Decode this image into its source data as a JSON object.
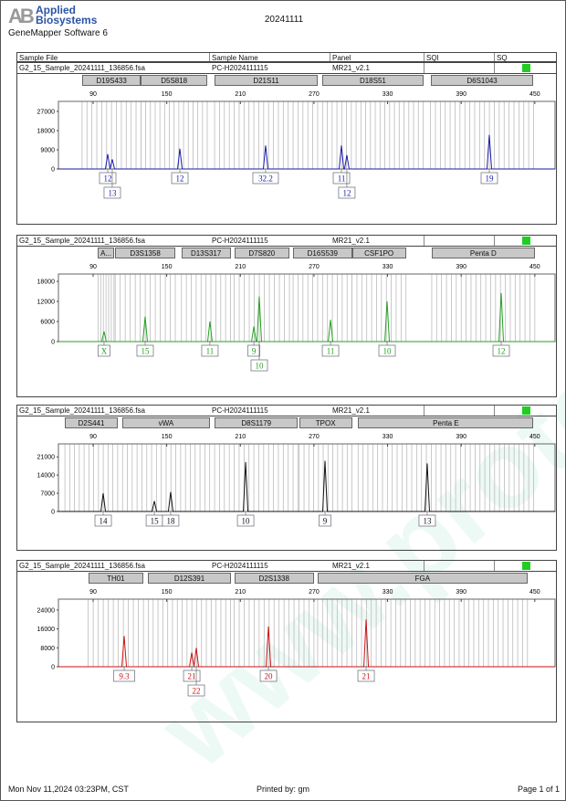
{
  "header": {
    "logo_text_1": "Applied",
    "logo_text_2": "Biosystems",
    "logo_mark": "AB",
    "software": "GeneMapper Software 6",
    "title": "20241111"
  },
  "columns": {
    "sample_file": "Sample File",
    "sample_name": "Sample Name",
    "panel": "Panel",
    "sqi": "SQI",
    "sq": "SQ"
  },
  "watermark": "www.proteh.com.cn",
  "footer": {
    "datetime": "Mon Nov 11,2024 03:23PM, CST",
    "printed_by": "Printed by: gm",
    "page": "Page 1 of 1"
  },
  "colors": {
    "sq_ok": "#22cc22",
    "bin": "#bbbbbb"
  },
  "chart_data": [
    {
      "type": "line",
      "sample_file": "G2_15_Sample_20241111_136856.fsa",
      "sample_name": "PC-H2024111115",
      "panel": "MR21_v2.1",
      "color": "#1a1aa6",
      "xlim": [
        62,
        466
      ],
      "ylim": [
        0,
        31700
      ],
      "x_ticks": [
        90,
        150,
        210,
        270,
        330,
        390,
        450
      ],
      "y_ticks": [
        0,
        9000,
        18000,
        27000
      ],
      "markers": [
        {
          "name": "D19S433",
          "range": [
            81,
            129
          ]
        },
        {
          "name": "D5S818",
          "range": [
            129,
            183
          ]
        },
        {
          "name": "D21S11",
          "range": [
            189,
            273
          ]
        },
        {
          "name": "D18S51",
          "range": [
            277,
            359
          ]
        },
        {
          "name": "D6S1043",
          "range": [
            365,
            449
          ]
        }
      ],
      "peaks": [
        {
          "size": 101.9,
          "height": 7000,
          "allele": "12",
          "row": 0
        },
        {
          "size": 105.6,
          "height": 4500,
          "allele": "13",
          "row": 1
        },
        {
          "size": 160.7,
          "height": 9500,
          "allele": "12",
          "row": 0
        },
        {
          "size": 230.6,
          "height": 11000,
          "allele": "32.2",
          "row": 0
        },
        {
          "size": 292.4,
          "height": 11000,
          "allele": "11",
          "row": 0
        },
        {
          "size": 296.8,
          "height": 6500,
          "allele": "12",
          "row": 1
        },
        {
          "size": 412.9,
          "height": 16000,
          "allele": "19",
          "row": 0
        }
      ]
    },
    {
      "type": "line",
      "sample_file": "G2_15_Sample_20241111_136856.fsa",
      "sample_name": "PC-H2024111115",
      "panel": "MR21_v2.1",
      "color": "#22a022",
      "xlim": [
        62,
        466
      ],
      "ylim": [
        0,
        20200
      ],
      "x_ticks": [
        90,
        150,
        210,
        270,
        330,
        390,
        450
      ],
      "y_ticks": [
        0,
        6000,
        12000,
        18000
      ],
      "markers": [
        {
          "name": "A...",
          "range": [
            94,
            107
          ]
        },
        {
          "name": "D3S1358",
          "range": [
            108,
            157
          ]
        },
        {
          "name": "D13S317",
          "range": [
            162,
            202
          ]
        },
        {
          "name": "D7S820",
          "range": [
            205,
            250
          ]
        },
        {
          "name": "D16S539",
          "range": [
            253,
            301
          ]
        },
        {
          "name": "CSF1PO",
          "range": [
            301,
            345
          ]
        },
        {
          "name": "Penta D",
          "range": [
            366,
            450
          ]
        }
      ],
      "peaks": [
        {
          "size": 98.9,
          "height": 3000,
          "allele": "X",
          "row": 0
        },
        {
          "size": 132.4,
          "height": 7500,
          "allele": "15",
          "row": 0
        },
        {
          "size": 185.2,
          "height": 6000,
          "allele": "11",
          "row": 0
        },
        {
          "size": 221,
          "height": 4500,
          "allele": "9",
          "row": 0
        },
        {
          "size": 225.4,
          "height": 13500,
          "allele": "10",
          "row": 1
        },
        {
          "size": 283.5,
          "height": 6500,
          "allele": "11",
          "row": 0
        },
        {
          "size": 329.6,
          "height": 12000,
          "allele": "10",
          "row": 0
        },
        {
          "size": 422.6,
          "height": 14500,
          "allele": "12",
          "row": 0
        }
      ]
    },
    {
      "type": "line",
      "sample_file": "G2_15_Sample_20241111_136856.fsa",
      "sample_name": "PC-H2024111115",
      "panel": "MR21_v2.1",
      "color": "#111111",
      "xlim": [
        62,
        466
      ],
      "ylim": [
        0,
        26000
      ],
      "x_ticks": [
        90,
        150,
        210,
        270,
        330,
        390,
        450
      ],
      "y_ticks": [
        0,
        7000,
        14000,
        21000
      ],
      "markers": [
        {
          "name": "D2S441",
          "range": [
            67,
            110
          ]
        },
        {
          "name": "vWA",
          "range": [
            114,
            185
          ]
        },
        {
          "name": "D8S1179",
          "range": [
            189,
            257
          ]
        },
        {
          "name": "TPOX",
          "range": [
            258,
            301
          ]
        },
        {
          "name": "Penta E",
          "range": [
            306,
            449
          ]
        }
      ],
      "peaks": [
        {
          "size": 98.2,
          "height": 7000,
          "allele": "14",
          "row": 0
        },
        {
          "size": 139.9,
          "height": 4000,
          "allele": "15",
          "row": 0
        },
        {
          "size": 153.2,
          "height": 7500,
          "allele": "18",
          "row": 0
        },
        {
          "size": 214.3,
          "height": 19000,
          "allele": "10",
          "row": 0
        },
        {
          "size": 279,
          "height": 19500,
          "allele": "9",
          "row": 0
        },
        {
          "size": 362.3,
          "height": 18500,
          "allele": "13",
          "row": 0
        }
      ]
    },
    {
      "type": "line",
      "sample_file": "G2_15_Sample_20241111_136856.fsa",
      "sample_name": "PC-H2024111115",
      "panel": "MR21_v2.1",
      "color": "#cc1111",
      "xlim": [
        62,
        466
      ],
      "ylim": [
        0,
        28600
      ],
      "x_ticks": [
        90,
        150,
        210,
        270,
        330,
        390,
        450
      ],
      "y_ticks": [
        0,
        8000,
        16000,
        24000
      ],
      "markers": [
        {
          "name": "TH01",
          "range": [
            86,
            131
          ]
        },
        {
          "name": "D12S391",
          "range": [
            135,
            202
          ]
        },
        {
          "name": "D2S1338",
          "range": [
            205,
            270
          ]
        },
        {
          "name": "FGA",
          "range": [
            273,
            444
          ]
        }
      ],
      "peaks": [
        {
          "size": 115.3,
          "height": 13000,
          "allele": "9.3",
          "row": 0
        },
        {
          "size": 170.4,
          "height": 6000,
          "allele": "21",
          "row": 0
        },
        {
          "size": 174.1,
          "height": 8000,
          "allele": "22",
          "row": 1
        },
        {
          "size": 232.9,
          "height": 17000,
          "allele": "20",
          "row": 0
        },
        {
          "size": 312.5,
          "height": 20000,
          "allele": "21",
          "row": 0
        }
      ]
    }
  ]
}
